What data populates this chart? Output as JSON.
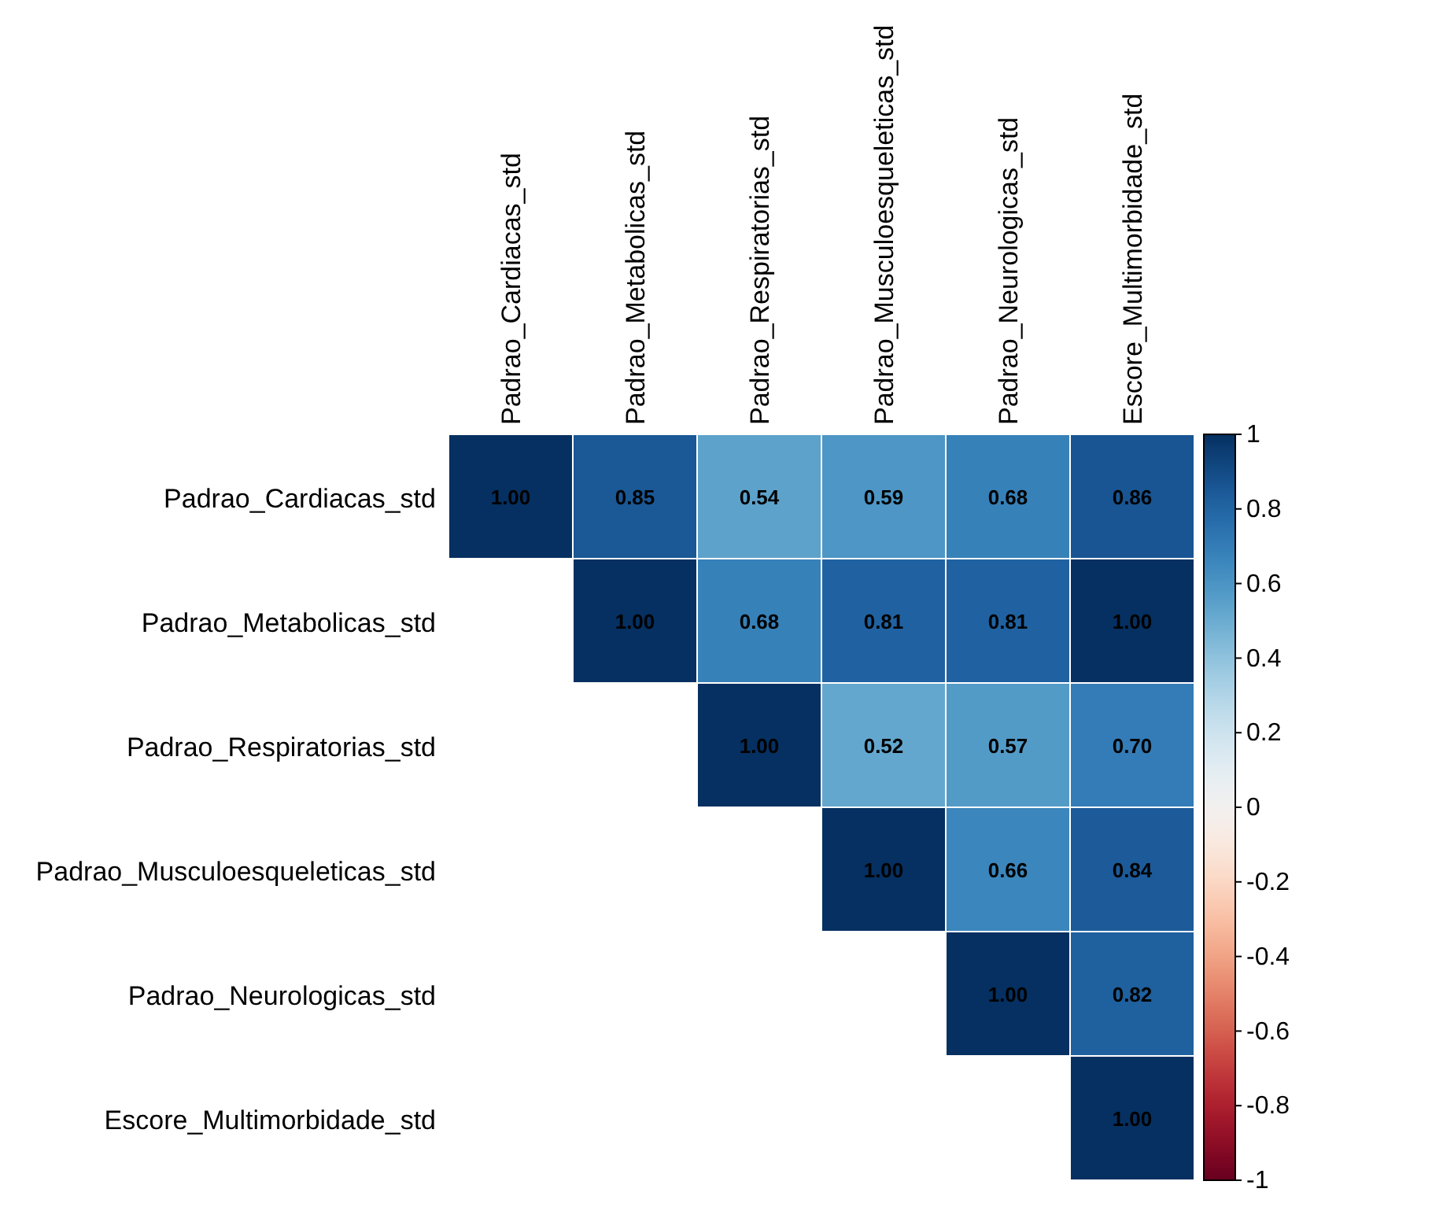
{
  "chart_data": {
    "type": "heatmap",
    "categories": [
      "Padrao_Cardiacas_std",
      "Padrao_Metabolicas_std",
      "Padrao_Respiratorias_std",
      "Padrao_Musculoesqueleticas_std",
      "Padrao_Neurologicas_std",
      "Escore_Multimorbidade_std"
    ],
    "y_categories": [
      "Padrao_Cardiacas_std",
      "Padrao_Metabolicas_std",
      "Padrao_Respiratorias_std",
      "Padrao_Musculoesqueleticas_std",
      "Padrao_Neurologicas_std",
      "Escore_Multimorbidade_std"
    ],
    "cells": [
      [
        1,
        0.85,
        0.54,
        0.59,
        0.68,
        0.86
      ],
      [
        null,
        1,
        0.68,
        0.81,
        0.81,
        1
      ],
      [
        null,
        null,
        1,
        0.52,
        0.57,
        0.7
      ],
      [
        null,
        null,
        null,
        1,
        0.66,
        0.84
      ],
      [
        null,
        null,
        null,
        null,
        1,
        0.82
      ],
      [
        null,
        null,
        null,
        null,
        null,
        1
      ]
    ],
    "cell_labels": [
      [
        "1.00",
        "0.85",
        "0.54",
        "0.59",
        "0.68",
        "0.86"
      ],
      [
        null,
        "1.00",
        "0.68",
        "0.81",
        "0.81",
        "1.00"
      ],
      [
        null,
        null,
        "1.00",
        "0.52",
        "0.57",
        "0.70"
      ],
      [
        null,
        null,
        null,
        "1.00",
        "0.66",
        "0.84"
      ],
      [
        null,
        null,
        null,
        null,
        "1.00",
        "0.82"
      ],
      [
        null,
        null,
        null,
        null,
        null,
        "1.00"
      ]
    ],
    "clim": [
      -1,
      1
    ],
    "cticks": [
      1,
      0.8,
      0.6,
      0.4,
      0.2,
      0,
      -0.2,
      -0.4,
      -0.6,
      -0.8,
      -1
    ]
  }
}
